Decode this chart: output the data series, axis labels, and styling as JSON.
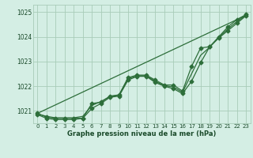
{
  "title": "Graphe pression niveau de la mer (hPa)",
  "bg_color": "#d4eee4",
  "grid_color": "#a8ccb8",
  "line_color": "#2d6e3a",
  "text_color": "#1a4a2a",
  "xlim": [
    -0.5,
    23.5
  ],
  "ylim": [
    1020.5,
    1025.3
  ],
  "yticks": [
    1021,
    1022,
    1023,
    1024,
    1025
  ],
  "xtick_labels": [
    "0",
    "1",
    "2",
    "3",
    "4",
    "5",
    "6",
    "7",
    "8",
    "9",
    "10",
    "11",
    "12",
    "13",
    "14",
    "15",
    "16",
    "17",
    "18",
    "19",
    "20",
    "21",
    "22",
    "23"
  ],
  "line1_x": [
    0,
    1,
    2,
    3,
    4,
    5,
    6,
    7,
    8,
    9,
    10,
    11,
    12,
    13,
    14,
    15,
    16,
    17,
    18,
    19,
    20,
    21,
    22,
    23
  ],
  "line1_y": [
    1020.9,
    1020.75,
    1020.7,
    1020.7,
    1020.7,
    1020.7,
    1021.3,
    1021.35,
    1021.6,
    1021.65,
    1022.35,
    1022.45,
    1022.45,
    1022.25,
    1022.05,
    1022.05,
    1021.8,
    1022.8,
    1023.55,
    1023.6,
    1024.0,
    1024.4,
    1024.7,
    1024.9
  ],
  "line2_x": [
    0,
    1,
    2,
    3,
    4,
    5,
    6,
    7,
    8,
    9,
    10,
    11,
    12,
    13,
    14,
    15,
    16,
    17,
    18,
    19,
    20,
    21,
    22,
    23
  ],
  "line2_y": [
    1020.85,
    1020.7,
    1020.65,
    1020.65,
    1020.65,
    1020.7,
    1021.1,
    1021.3,
    1021.55,
    1021.6,
    1022.25,
    1022.4,
    1022.4,
    1022.15,
    1022.0,
    1021.9,
    1021.7,
    1022.2,
    1022.95,
    1023.6,
    1023.95,
    1024.25,
    1024.55,
    1024.85
  ],
  "line3_x": [
    0,
    1,
    2,
    3,
    4,
    5,
    6,
    7,
    8,
    9,
    10,
    11,
    12,
    13,
    14,
    15,
    16,
    17,
    18,
    19,
    20,
    21,
    22,
    23
  ],
  "line3_y": [
    1020.88,
    1020.78,
    1020.72,
    1020.72,
    1020.72,
    1020.78,
    1021.22,
    1021.38,
    1021.58,
    1021.63,
    1022.3,
    1022.42,
    1022.42,
    1022.2,
    1022.02,
    1021.97,
    1021.75,
    1022.5,
    1023.25,
    1023.58,
    1023.97,
    1024.32,
    1024.62,
    1024.87
  ],
  "trend_x": [
    0,
    23
  ],
  "trend_y": [
    1020.9,
    1024.87
  ],
  "marker": "D",
  "markersize": 2.5,
  "linewidth": 0.9
}
